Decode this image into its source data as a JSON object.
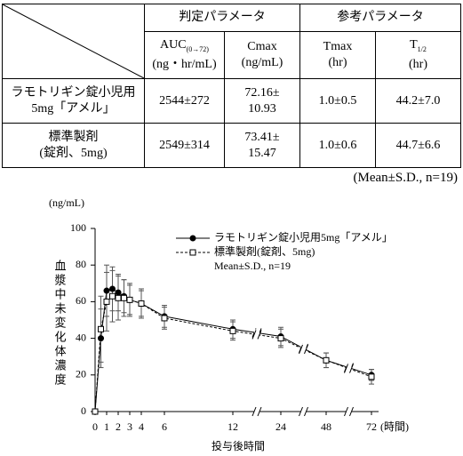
{
  "table": {
    "groups": [
      "判定パラメータ",
      "参考パラメータ"
    ],
    "columns": [
      {
        "name": "AUC",
        "sub": "(0→72)",
        "unit": "(ng・hr/mL)"
      },
      {
        "name": "Cmax",
        "unit": "(ng/mL)"
      },
      {
        "name": "Tmax",
        "unit": "(hr)"
      },
      {
        "name": "T",
        "sub": "1/2",
        "unit": "(hr)"
      }
    ],
    "rows": [
      {
        "label": [
          "ラモトリギン錠小児用",
          "5mg「アメル」"
        ],
        "cells": [
          [
            "2544±272"
          ],
          [
            "72.16±",
            "10.93"
          ],
          [
            "1.0±0.5"
          ],
          [
            "44.2±7.0"
          ]
        ]
      },
      {
        "label": [
          "標準製剤",
          "(錠剤、5mg)"
        ],
        "cells": [
          [
            "2549±314"
          ],
          [
            "73.41±",
            "15.47"
          ],
          [
            "1.0±0.6"
          ],
          [
            "44.7±6.6"
          ]
        ]
      }
    ],
    "note": "(Mean±S.D., n=19)"
  },
  "chart_data": {
    "type": "line",
    "y_unit": "(ng/mL)",
    "y_title": "血漿中未変化体濃度",
    "x_title": "投与後時間",
    "x_unit": "(時間)",
    "legend_note": "Mean±S.D., n=19",
    "x": [
      0,
      0.5,
      1,
      1.5,
      2,
      2.5,
      3,
      4,
      6,
      12,
      24,
      48,
      72
    ],
    "series": [
      {
        "name": "ラモトリギン錠小児用5mg「アメル」",
        "color": "#000000",
        "marker": "circle",
        "dashed": false,
        "values": [
          0,
          40,
          66,
          67,
          65,
          63,
          61,
          59,
          52,
          45,
          41,
          28,
          20
        ],
        "errors": [
          0,
          16,
          14,
          12,
          10,
          9,
          8,
          7,
          6,
          5,
          5,
          4,
          3
        ]
      },
      {
        "name": "標準製剤(錠剤、5mg)",
        "color": "#000000",
        "marker": "square",
        "dashed": true,
        "values": [
          0,
          45,
          60,
          63,
          62,
          62,
          61,
          59,
          51,
          44,
          40,
          28,
          19
        ],
        "errors": [
          0,
          18,
          16,
          14,
          12,
          10,
          9,
          8,
          6,
          5,
          5,
          4,
          4
        ]
      }
    ],
    "xlim": [
      0,
      72
    ],
    "xticks": [
      0,
      1,
      2,
      3,
      4,
      6,
      12,
      24,
      48,
      72
    ],
    "ylim": [
      0,
      100
    ],
    "yticks": [
      0,
      20,
      40,
      60,
      80,
      100
    ]
  }
}
